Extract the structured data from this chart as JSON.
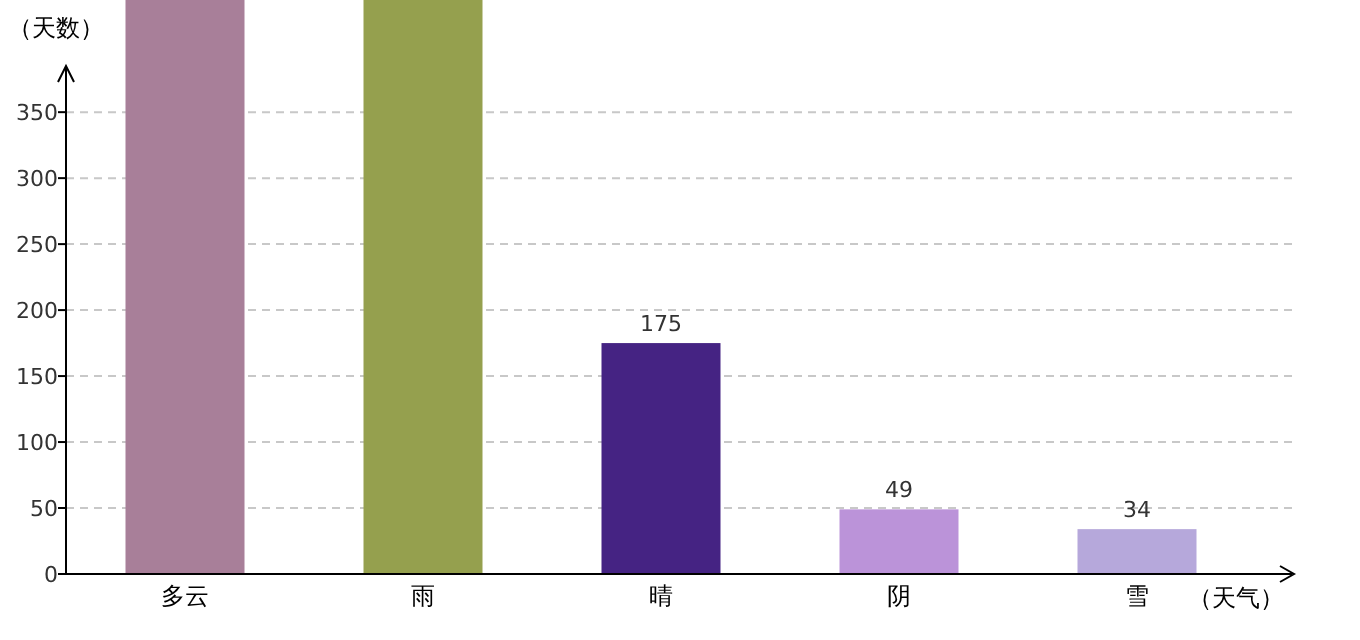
{
  "chart_data": {
    "type": "bar",
    "ylabel": "（天数）",
    "xlabel": "（天气）",
    "categories": [
      "多云",
      "雨",
      "晴",
      "阴",
      "雪"
    ],
    "values": [
      435,
      435,
      175,
      49,
      34
    ],
    "value_labels": [
      null,
      null,
      "175",
      "49",
      "34"
    ],
    "colors": [
      "#a87f99",
      "#95a04e",
      "#452383",
      "#bb93d9",
      "#b6a8db"
    ],
    "ylim": [
      0,
      435
    ],
    "yticks": [
      0,
      50,
      100,
      150,
      200,
      250,
      300,
      350
    ],
    "grid": "y"
  }
}
